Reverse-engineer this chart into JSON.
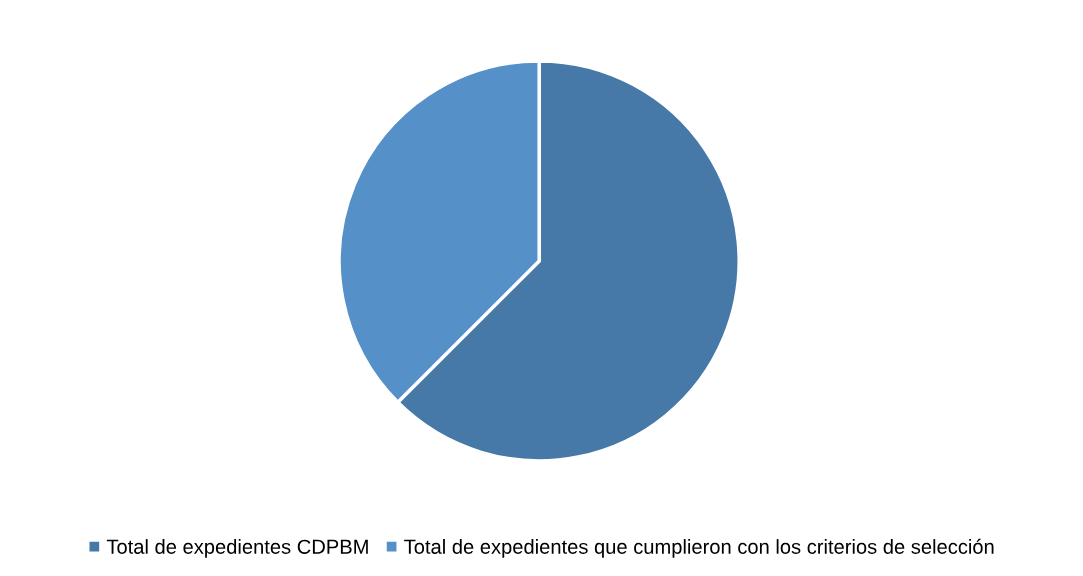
{
  "chart_data": {
    "type": "pie",
    "categories": [
      "Total de expedientes CDPBM",
      "Total de expedientes que cumplieron con los criterios de selección"
    ],
    "values": [
      62.5,
      37.5
    ],
    "colors": [
      "#4779a8",
      "#5591c8"
    ],
    "legend": "bottom"
  }
}
